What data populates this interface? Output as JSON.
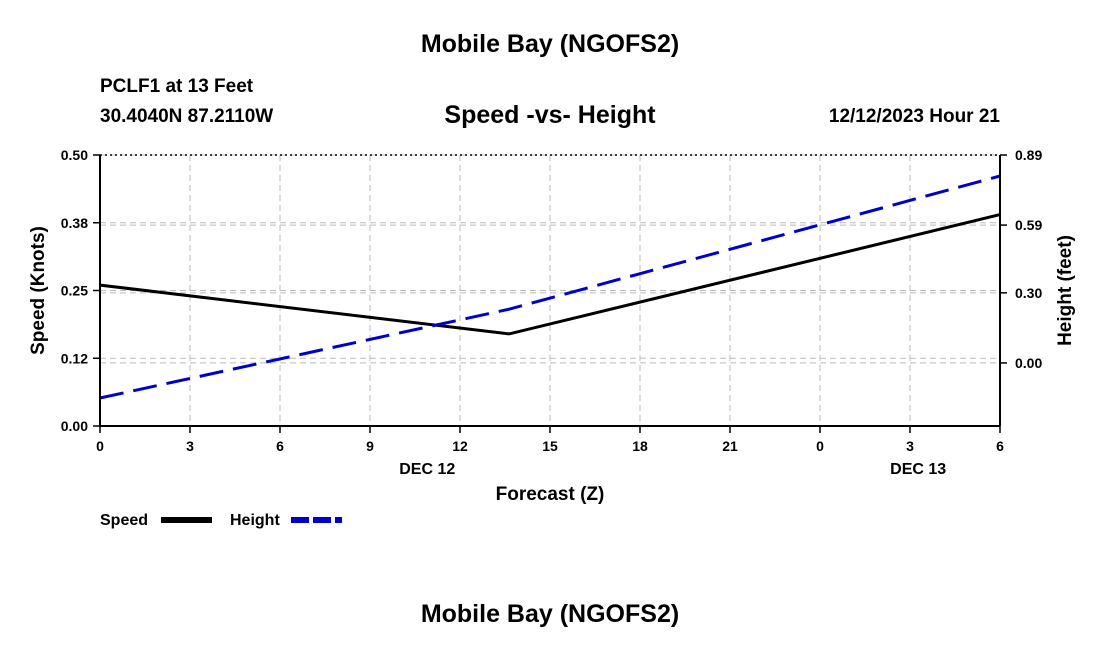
{
  "header": {
    "title": "Mobile Bay (NGOFS2)",
    "station_name": "PCLF1 at 13 Feet",
    "station_coords": "30.4040N  87.2110W",
    "datetime": "12/12/2023 Hour 21"
  },
  "footer": {
    "title": "Mobile Bay (NGOFS2)"
  },
  "colors": {
    "speed": "#000000",
    "height": "#0000cc",
    "grid": "#bbbbbb"
  },
  "chart_data": {
    "type": "line",
    "title": "Speed -vs- Height",
    "xlabel": "Forecast (Z)",
    "ylabel": "Speed (Knots)",
    "y2label": "Height (feet)",
    "x_ticks": [
      "0",
      "3",
      "6",
      "9",
      "12",
      "15",
      "18",
      "21",
      "0",
      "3",
      "6"
    ],
    "x_day_labels": [
      {
        "at_hours": 12,
        "label": "DEC 12"
      },
      {
        "at_hours": 30,
        "label": "DEC 13"
      }
    ],
    "x_range_hours": [
      0,
      33
    ],
    "ylim": [
      0,
      0.5
    ],
    "y_ticks": [
      "0.00",
      "0.12",
      "0.25",
      "0.38",
      "0.50"
    ],
    "y2lim": [
      -0.27,
      0.89
    ],
    "y2_ticks": [
      "0.00",
      "0.30",
      "0.59",
      "0.89"
    ],
    "grid": true,
    "legend_position": "bottom-left",
    "series": [
      {
        "name": "Speed",
        "axis": "left",
        "style": "solid",
        "x_hours": [
          0,
          15,
          33
        ],
        "values": [
          0.26,
          0.17,
          0.39
        ]
      },
      {
        "name": "Height",
        "axis": "right",
        "style": "dashed",
        "x_hours": [
          0,
          15,
          33
        ],
        "values": [
          -0.15,
          0.23,
          0.8
        ]
      }
    ]
  }
}
